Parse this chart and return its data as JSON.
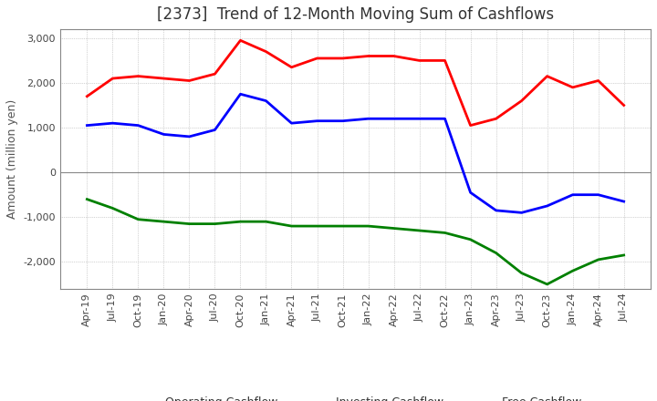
{
  "title": "[2373]  Trend of 12-Month Moving Sum of Cashflows",
  "ylabel": "Amount (million yen)",
  "background_color": "#ffffff",
  "plot_bg_color": "#ffffff",
  "grid_color": "#aaaaaa",
  "x_labels": [
    "Apr-19",
    "Jul-19",
    "Oct-19",
    "Jan-20",
    "Apr-20",
    "Jul-20",
    "Oct-20",
    "Jan-21",
    "Apr-21",
    "Jul-21",
    "Oct-21",
    "Jan-22",
    "Apr-22",
    "Jul-22",
    "Oct-22",
    "Jan-23",
    "Apr-23",
    "Jul-23",
    "Oct-23",
    "Jan-24",
    "Apr-24",
    "Jul-24"
  ],
  "operating_cashflow": [
    1700,
    2100,
    2150,
    2100,
    2050,
    2200,
    2950,
    2700,
    2350,
    2550,
    2550,
    2600,
    2600,
    2500,
    2500,
    1050,
    1200,
    1600,
    2150,
    1900,
    2050,
    1500
  ],
  "investing_cashflow": [
    -600,
    -800,
    -1050,
    -1100,
    -1150,
    -1150,
    -1100,
    -1100,
    -1200,
    -1200,
    -1200,
    -1200,
    -1250,
    -1300,
    -1350,
    -1500,
    -1800,
    -2250,
    -2500,
    -2200,
    -1950,
    -1850
  ],
  "free_cashflow": [
    1050,
    1100,
    1050,
    850,
    800,
    950,
    1750,
    1600,
    1100,
    1150,
    1150,
    1200,
    1200,
    1200,
    1200,
    -450,
    -850,
    -900,
    -750,
    -500,
    -500,
    -650
  ],
  "operating_color": "#ff0000",
  "investing_color": "#008000",
  "free_color": "#0000ff",
  "ylim": [
    -2600,
    3200
  ],
  "yticks": [
    -2000,
    -1000,
    0,
    1000,
    2000,
    3000
  ],
  "line_width": 2.0,
  "title_fontsize": 12,
  "tick_fontsize": 8,
  "label_fontsize": 9
}
